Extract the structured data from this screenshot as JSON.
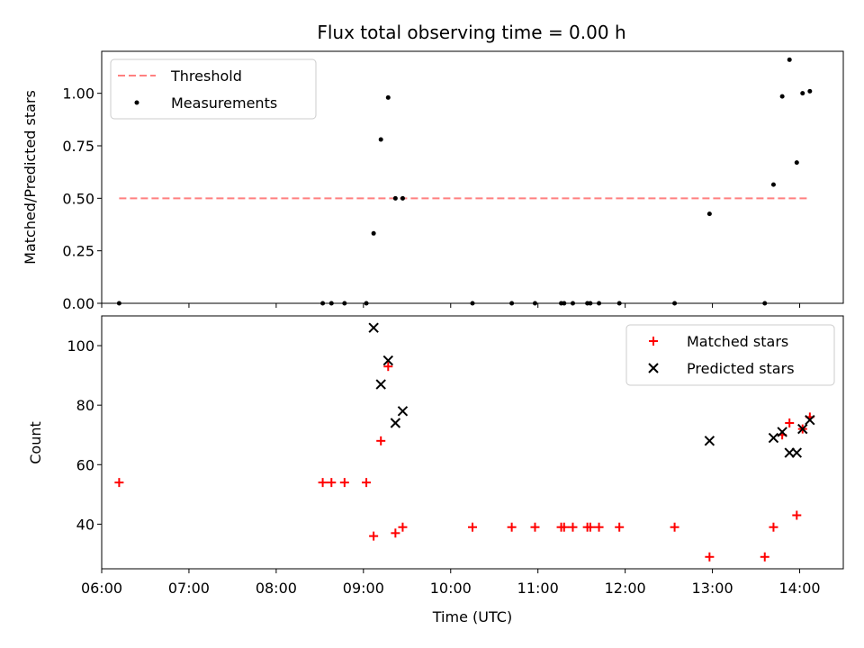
{
  "chart_data": [
    {
      "type": "scatter",
      "title": "Flux total observing time = 0.00 h",
      "xlabel": "",
      "ylabel": "Matched/Predicted stars",
      "xlim": [
        "06:00",
        "14:30"
      ],
      "ylim": [
        0,
        1.2
      ],
      "yticks": [
        "0.00",
        "0.25",
        "0.50",
        "0.75",
        "1.00"
      ],
      "legend_position": "top-left",
      "threshold": {
        "name": "Threshold",
        "value": 0.5,
        "x": [
          "06:12",
          "14:06"
        ],
        "color": "#ff8080",
        "style": "dashed"
      },
      "series": [
        {
          "name": "Measurements",
          "color": "#000000",
          "marker": "dot",
          "x": [
            "06:12",
            "08:32",
            "08:38",
            "08:47",
            "09:02",
            "09:07",
            "09:12",
            "09:17",
            "09:22",
            "09:27",
            "10:15",
            "10:42",
            "10:58",
            "11:16",
            "11:18",
            "11:24",
            "11:34",
            "11:36",
            "11:42",
            "11:56",
            "12:34",
            "12:58",
            "13:36",
            "13:42",
            "13:48",
            "13:53",
            "13:58",
            "14:02",
            "14:07"
          ],
          "values": [
            0.0,
            0.0,
            0.0,
            0.0,
            0.0,
            0.333,
            0.78,
            0.98,
            0.5,
            0.5,
            0.0,
            0.0,
            0.0,
            0.0,
            0.0,
            0.0,
            0.0,
            0.0,
            0.0,
            0.0,
            0.0,
            0.426,
            0.0,
            0.565,
            0.985,
            1.16,
            0.67,
            1.0,
            1.01
          ]
        }
      ]
    },
    {
      "type": "scatter",
      "title": "",
      "xlabel": "Time (UTC)",
      "ylabel": "Count",
      "xlim": [
        "06:00",
        "14:30"
      ],
      "ylim": [
        25,
        110
      ],
      "xticks": [
        "06:00",
        "07:00",
        "08:00",
        "09:00",
        "10:00",
        "11:00",
        "12:00",
        "13:00",
        "14:00"
      ],
      "yticks": [
        "40",
        "60",
        "80",
        "100"
      ],
      "legend_position": "top-right",
      "series": [
        {
          "name": "Matched stars",
          "color": "#ff0000",
          "marker": "plus",
          "x": [
            "06:12",
            "08:32",
            "08:38",
            "08:47",
            "09:02",
            "09:07",
            "09:12",
            "09:17",
            "09:22",
            "09:27",
            "10:15",
            "10:42",
            "10:58",
            "11:16",
            "11:18",
            "11:24",
            "11:34",
            "11:36",
            "11:42",
            "11:56",
            "12:34",
            "12:58",
            "13:36",
            "13:42",
            "13:48",
            "13:53",
            "13:58",
            "14:02",
            "14:07"
          ],
          "values": [
            54,
            54,
            54,
            54,
            54,
            36,
            68,
            93,
            37,
            39,
            39,
            39,
            39,
            39,
            39,
            39,
            39,
            39,
            39,
            39,
            39,
            29,
            29,
            39,
            70,
            74,
            43,
            72,
            76
          ]
        },
        {
          "name": "Predicted stars",
          "color": "#000000",
          "marker": "x",
          "x": [
            "09:07",
            "09:12",
            "09:17",
            "09:22",
            "09:27",
            "12:58",
            "13:42",
            "13:48",
            "13:53",
            "13:58",
            "14:02",
            "14:07"
          ],
          "values": [
            106,
            87,
            95,
            74,
            78,
            68,
            69,
            71,
            64,
            64,
            72,
            75
          ]
        }
      ]
    }
  ]
}
